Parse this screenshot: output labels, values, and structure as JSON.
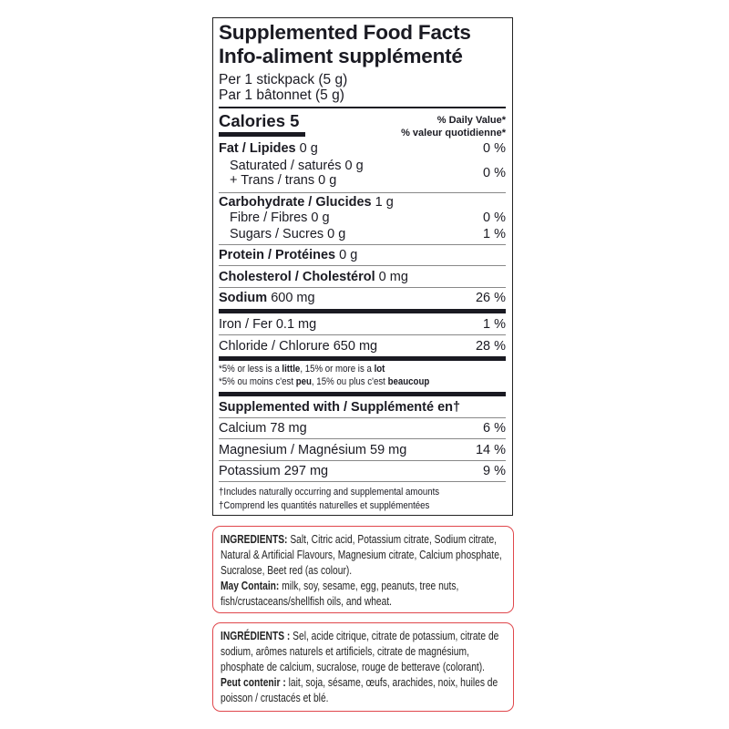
{
  "label": {
    "title_en": "Supplemented Food Facts",
    "title_fr": "Info-aliment supplémenté",
    "serving_en": "Per 1 stickpack (5 g)",
    "serving_fr": "Par 1 bâtonnet (5 g)",
    "calories": "Calories 5",
    "dv_en": "% Daily Value*",
    "dv_fr": "% valeur quotidienne*",
    "fat": {
      "name": "Fat / Lipides",
      "amount": "0 g",
      "dv": "0 %"
    },
    "saturated": {
      "name": "Saturated / saturés 0 g"
    },
    "trans": {
      "name": "+ Trans / trans 0 g",
      "dv": "0 %"
    },
    "carb": {
      "name": "Carbohydrate / Glucides",
      "amount": "1  g"
    },
    "fibre": {
      "name": "Fibre / Fibres 0 g",
      "dv": "0 %"
    },
    "sugars": {
      "name": "Sugars / Sucres 0 g",
      "dv": "1 %"
    },
    "protein": {
      "name": "Protein / Protéines",
      "amount": "0 g"
    },
    "cholesterol": {
      "name": "Cholesterol / Cholestérol",
      "amount": "0 mg"
    },
    "sodium": {
      "name": "Sodium",
      "amount": "600 mg",
      "dv": "26 %"
    },
    "iron": {
      "name": "Iron / Fer 0.1 mg",
      "dv": "1 %"
    },
    "chloride": {
      "name": "Chloride / Chlorure 650 mg",
      "dv": "28 %"
    },
    "footnote_en": {
      "a": "*5% or less is a ",
      "b": "little",
      "c": ", 15% or more is a ",
      "d": "lot"
    },
    "footnote_fr": {
      "a": "*5% ou moins c'est ",
      "b": "peu",
      "c": ", 15% ou plus c'est ",
      "d": "beaucoup"
    },
    "supplemented_header": "Supplemented with / Supplémenté en†",
    "calcium": {
      "name": "Calcium 78 mg",
      "dv": "6 %"
    },
    "magnesium": {
      "name": "Magnesium / Magnésium 59 mg",
      "dv": "14 %"
    },
    "potassium": {
      "name": "Potassium 297 mg",
      "dv": "9 %"
    },
    "dagger_en": "†Includes naturally occurring and supplemental amounts",
    "dagger_fr": "†Comprend les quantités naturelles et supplémentées"
  },
  "ingredients_en": {
    "label": "INGREDIENTS:",
    "text": " Salt, Citric acid, Potassium citrate, Sodium citrate, Natural & Artificial Flavours, Magnesium citrate, Calcium phosphate, Sucralose, Beet red (as colour).",
    "may_label": "May Contain:",
    "may_text": " milk, soy, sesame, egg, peanuts, tree nuts, fish/crustaceans/shellfish oils, and wheat."
  },
  "ingredients_fr": {
    "label": "INGRÉDIENTS :",
    "text": " Sel, acide citrique, citrate de potassium, citrate de sodium, arômes naturels et artificiels, citrate de magnésium, phosphate de calcium, sucralose, rouge de betterave (colorant). ",
    "may_label": "Peut contenir :",
    "may_text": " lait, soja, sésame, œufs, arachides, noix, huiles de poisson / crustacés et blé."
  },
  "colors": {
    "ingredient_border": "#e0474c",
    "text": "#1a1a22"
  }
}
